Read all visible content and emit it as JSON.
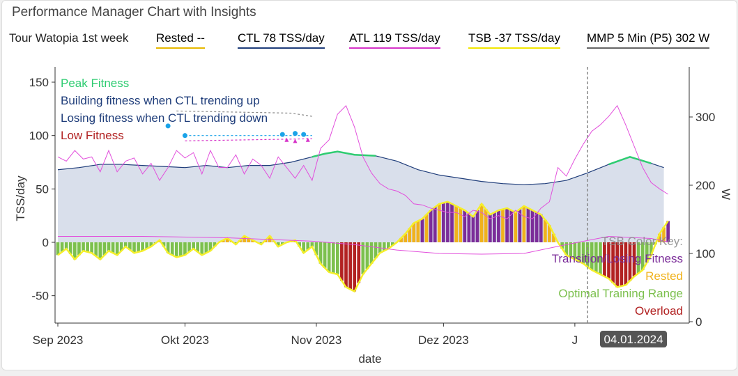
{
  "title": "Performance Manager Chart with Insights",
  "legend": {
    "range_label": "Tour Watopia 1st week",
    "items": [
      {
        "label": "Rested  --",
        "color": "#e6b800"
      },
      {
        "label": "CTL  78 TSS/day",
        "color": "#1f3d7a"
      },
      {
        "label": "ATL  119 TSS/day",
        "color": "#d633c8"
      },
      {
        "label": "TSB  -37 TSS/day",
        "color": "#f2e600"
      },
      {
        "label": "MMP 5 Min (P5)  302 W",
        "color": "#666666"
      }
    ]
  },
  "chart_data": {
    "type": "area",
    "title": "Performance Manager Chart with Insights",
    "xlabel": "date",
    "ylabel": "TSS/day",
    "y2label": "W",
    "ylim": [
      -75,
      155
    ],
    "y2lim": [
      0,
      375
    ],
    "yticks": [
      150,
      100,
      50,
      0,
      -50
    ],
    "y2ticks": [
      300,
      200,
      100,
      0
    ],
    "xticks": [
      {
        "label": "Sep 2023",
        "day": 0
      },
      {
        "label": "Okt 2023",
        "day": 30
      },
      {
        "label": "Nov 2023",
        "day": 61
      },
      {
        "label": "Dez 2023",
        "day": 91
      },
      {
        "label": "J",
        "day": 122
      }
    ],
    "hover": {
      "label": "04.01.2024",
      "day": 125
    },
    "ctl": [
      [
        0,
        68
      ],
      [
        5,
        70
      ],
      [
        10,
        73
      ],
      [
        15,
        73
      ],
      [
        20,
        72
      ],
      [
        25,
        71
      ],
      [
        30,
        70
      ],
      [
        35,
        72
      ],
      [
        40,
        70
      ],
      [
        45,
        72
      ],
      [
        50,
        72
      ],
      [
        55,
        75
      ],
      [
        60,
        80
      ],
      [
        63,
        83
      ],
      [
        66,
        85
      ],
      [
        70,
        82
      ],
      [
        75,
        81
      ],
      [
        80,
        76
      ],
      [
        85,
        68
      ],
      [
        90,
        63
      ],
      [
        95,
        60
      ],
      [
        100,
        57
      ],
      [
        105,
        55
      ],
      [
        110,
        54
      ],
      [
        115,
        55
      ],
      [
        120,
        58
      ],
      [
        125,
        65
      ],
      [
        130,
        73
      ],
      [
        135,
        80
      ],
      [
        140,
        74
      ],
      [
        143,
        70
      ]
    ],
    "atl": [
      [
        0,
        80
      ],
      [
        2,
        76
      ],
      [
        4,
        86
      ],
      [
        6,
        78
      ],
      [
        8,
        80
      ],
      [
        10,
        66
      ],
      [
        12,
        86
      ],
      [
        14,
        66
      ],
      [
        16,
        76
      ],
      [
        18,
        79
      ],
      [
        20,
        64
      ],
      [
        22,
        74
      ],
      [
        24,
        58
      ],
      [
        26,
        70
      ],
      [
        28,
        86
      ],
      [
        30,
        79
      ],
      [
        32,
        84
      ],
      [
        34,
        64
      ],
      [
        36,
        86
      ],
      [
        38,
        70
      ],
      [
        40,
        70
      ],
      [
        42,
        82
      ],
      [
        44,
        64
      ],
      [
        46,
        78
      ],
      [
        48,
        72
      ],
      [
        50,
        60
      ],
      [
        52,
        80
      ],
      [
        54,
        70
      ],
      [
        56,
        60
      ],
      [
        58,
        72
      ],
      [
        60,
        58
      ],
      [
        62,
        88
      ],
      [
        64,
        96
      ],
      [
        66,
        120
      ],
      [
        68,
        128
      ],
      [
        70,
        108
      ],
      [
        72,
        80
      ],
      [
        74,
        65
      ],
      [
        76,
        55
      ],
      [
        78,
        50
      ],
      [
        80,
        48
      ],
      [
        82,
        44
      ],
      [
        84,
        36
      ],
      [
        86,
        35
      ],
      [
        88,
        32
      ],
      [
        90,
        30
      ],
      [
        92,
        28
      ],
      [
        94,
        28
      ],
      [
        96,
        24
      ],
      [
        98,
        30
      ],
      [
        100,
        28
      ],
      [
        102,
        22
      ],
      [
        104,
        25
      ],
      [
        106,
        22
      ],
      [
        108,
        30
      ],
      [
        110,
        24
      ],
      [
        112,
        22
      ],
      [
        114,
        32
      ],
      [
        116,
        38
      ],
      [
        118,
        70
      ],
      [
        120,
        62
      ],
      [
        122,
        78
      ],
      [
        124,
        92
      ],
      [
        126,
        104
      ],
      [
        128,
        110
      ],
      [
        130,
        118
      ],
      [
        132,
        128
      ],
      [
        134,
        110
      ],
      [
        136,
        90
      ],
      [
        138,
        70
      ],
      [
        140,
        56
      ],
      [
        142,
        50
      ],
      [
        144,
        45
      ]
    ],
    "tsb": [
      [
        0,
        -12
      ],
      [
        2,
        -6
      ],
      [
        4,
        -16
      ],
      [
        6,
        -8
      ],
      [
        8,
        -10
      ],
      [
        10,
        -16
      ],
      [
        12,
        -8
      ],
      [
        14,
        -12
      ],
      [
        16,
        -4
      ],
      [
        18,
        -10
      ],
      [
        20,
        -8
      ],
      [
        22,
        -4
      ],
      [
        24,
        2
      ],
      [
        26,
        -10
      ],
      [
        28,
        -14
      ],
      [
        30,
        -12
      ],
      [
        32,
        -6
      ],
      [
        34,
        -12
      ],
      [
        36,
        -8
      ],
      [
        38,
        0
      ],
      [
        40,
        4
      ],
      [
        42,
        -2
      ],
      [
        44,
        6
      ],
      [
        46,
        2
      ],
      [
        48,
        -2
      ],
      [
        50,
        6
      ],
      [
        52,
        -4
      ],
      [
        54,
        0
      ],
      [
        56,
        2
      ],
      [
        58,
        -10
      ],
      [
        60,
        -4
      ],
      [
        62,
        -20
      ],
      [
        64,
        -28
      ],
      [
        66,
        -30
      ],
      [
        68,
        -42
      ],
      [
        70,
        -46
      ],
      [
        72,
        -30
      ],
      [
        74,
        -20
      ],
      [
        76,
        -10
      ],
      [
        78,
        -6
      ],
      [
        80,
        0
      ],
      [
        82,
        8
      ],
      [
        84,
        18
      ],
      [
        86,
        22
      ],
      [
        88,
        30
      ],
      [
        90,
        36
      ],
      [
        92,
        38
      ],
      [
        94,
        34
      ],
      [
        96,
        30
      ],
      [
        98,
        24
      ],
      [
        100,
        36
      ],
      [
        102,
        26
      ],
      [
        104,
        30
      ],
      [
        106,
        32
      ],
      [
        108,
        28
      ],
      [
        110,
        34
      ],
      [
        112,
        30
      ],
      [
        114,
        26
      ],
      [
        116,
        16
      ],
      [
        118,
        0
      ],
      [
        120,
        -12
      ],
      [
        122,
        -16
      ],
      [
        124,
        -20
      ],
      [
        126,
        -26
      ],
      [
        128,
        -30
      ],
      [
        130,
        -34
      ],
      [
        132,
        -42
      ],
      [
        134,
        -40
      ],
      [
        136,
        -32
      ],
      [
        138,
        -26
      ],
      [
        140,
        -12
      ],
      [
        142,
        8
      ],
      [
        144,
        20
      ]
    ],
    "mmp": [
      [
        0,
        125
      ],
      [
        20,
        125
      ],
      [
        40,
        123
      ],
      [
        60,
        118
      ],
      [
        70,
        113
      ],
      [
        80,
        105
      ],
      [
        90,
        100
      ],
      [
        100,
        99
      ],
      [
        110,
        100
      ],
      [
        120,
        113
      ],
      [
        130,
        125
      ],
      [
        140,
        122
      ],
      [
        144,
        117
      ]
    ]
  },
  "insights": {
    "peak": "Peak Fitness",
    "building": "Building fitness when CTL trending up",
    "losing": "Losing fitness when CTL trending down",
    "low": "Low Fitness"
  },
  "tsb_key": {
    "title": "TSB Color Key:",
    "transition": "Transition/Losing Fitness",
    "rested": "Rested",
    "optimal": "Optimal Training Range",
    "overload": "Overload"
  },
  "colors": {
    "ctl_fill": "#d9dfeb",
    "ctl_line": "#1f3d7a",
    "peak": "#2ecc71",
    "atl": "#e24fdc",
    "tsb_line": "#f5ef2a",
    "transition": "#7b2d99",
    "rested": "#f0b21c",
    "optimal": "#7cc04e",
    "overload": "#b22222"
  }
}
